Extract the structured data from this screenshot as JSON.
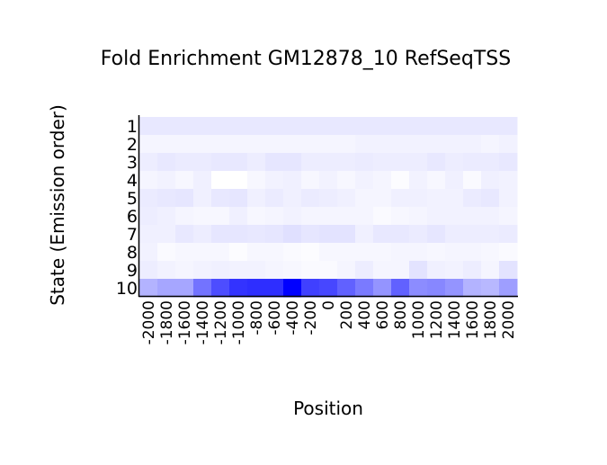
{
  "chart_data": {
    "type": "heatmap",
    "title": "Fold Enrichment GM12878_10 RefSeqTSS",
    "xlabel": "Position",
    "ylabel": "State (Emission order)",
    "x": [
      -2000,
      -1800,
      -1600,
      -1400,
      -1200,
      -1000,
      -800,
      -600,
      -400,
      -200,
      0,
      200,
      400,
      600,
      800,
      1000,
      1200,
      1400,
      1600,
      1800,
      2000
    ],
    "x_tick_labels": [
      "-2000",
      "-1800",
      "-1600",
      "-1400",
      "-1200",
      "-1000",
      "-800",
      "-600",
      "-400",
      "-200",
      "0",
      "200",
      "400",
      "600",
      "800",
      "1000",
      "1200",
      "1400",
      "1600",
      "1800",
      "2000"
    ],
    "y_tick_labels": [
      "1",
      "2",
      "3",
      "4",
      "5",
      "6",
      "7",
      "8",
      "9",
      "10"
    ],
    "colormap": {
      "low": "#ffffff",
      "high": "#0000ff"
    },
    "values": [
      [
        0.09,
        0.09,
        0.09,
        0.09,
        0.09,
        0.09,
        0.09,
        0.09,
        0.09,
        0.09,
        0.09,
        0.09,
        0.09,
        0.09,
        0.09,
        0.09,
        0.09,
        0.09,
        0.09,
        0.09,
        0.09
      ],
      [
        0.04,
        0.04,
        0.04,
        0.04,
        0.04,
        0.04,
        0.04,
        0.04,
        0.04,
        0.04,
        0.04,
        0.04,
        0.05,
        0.05,
        0.05,
        0.05,
        0.05,
        0.05,
        0.05,
        0.04,
        0.05
      ],
      [
        0.07,
        0.09,
        0.08,
        0.08,
        0.09,
        0.09,
        0.07,
        0.1,
        0.1,
        0.07,
        0.07,
        0.07,
        0.08,
        0.07,
        0.07,
        0.07,
        0.09,
        0.07,
        0.08,
        0.08,
        0.09
      ],
      [
        0.04,
        0.05,
        0.03,
        0.06,
        0.0,
        0.0,
        0.03,
        0.05,
        0.06,
        0.03,
        0.05,
        0.03,
        0.05,
        0.04,
        0.01,
        0.05,
        0.03,
        0.06,
        0.02,
        0.06,
        0.05
      ],
      [
        0.08,
        0.09,
        0.1,
        0.06,
        0.09,
        0.1,
        0.06,
        0.08,
        0.06,
        0.08,
        0.07,
        0.06,
        0.04,
        0.04,
        0.06,
        0.06,
        0.05,
        0.05,
        0.08,
        0.09,
        0.05
      ],
      [
        0.07,
        0.06,
        0.04,
        0.03,
        0.03,
        0.06,
        0.03,
        0.04,
        0.05,
        0.04,
        0.04,
        0.04,
        0.04,
        0.02,
        0.03,
        0.04,
        0.05,
        0.05,
        0.05,
        0.05,
        0.04
      ],
      [
        0.06,
        0.06,
        0.09,
        0.07,
        0.1,
        0.1,
        0.09,
        0.1,
        0.12,
        0.1,
        0.11,
        0.11,
        0.06,
        0.09,
        0.09,
        0.08,
        0.1,
        0.07,
        0.07,
        0.07,
        0.08
      ],
      [
        0.05,
        0.02,
        0.03,
        0.03,
        0.03,
        0.01,
        0.03,
        0.03,
        0.02,
        0.01,
        0.03,
        0.03,
        0.03,
        0.03,
        0.04,
        0.04,
        0.03,
        0.04,
        0.04,
        0.03,
        0.02
      ],
      [
        0.07,
        0.05,
        0.04,
        0.05,
        0.06,
        0.05,
        0.05,
        0.04,
        0.03,
        0.02,
        0.02,
        0.04,
        0.07,
        0.04,
        0.04,
        0.11,
        0.06,
        0.05,
        0.07,
        0.04,
        0.11
      ],
      [
        0.3,
        0.35,
        0.35,
        0.55,
        0.7,
        0.8,
        0.82,
        0.82,
        1.0,
        0.75,
        0.72,
        0.62,
        0.52,
        0.42,
        0.62,
        0.45,
        0.47,
        0.42,
        0.3,
        0.28,
        0.38
      ]
    ]
  }
}
